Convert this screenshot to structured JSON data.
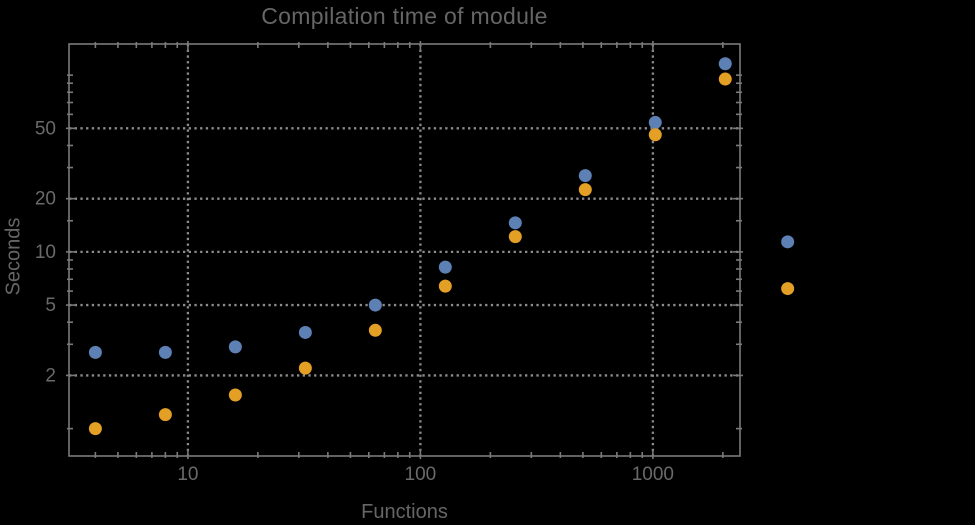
{
  "colors": {
    "background": "#000000",
    "frame": "#7a7a7a",
    "grid": "#8c8c8c",
    "tick": "#7a7a7a",
    "text": "#666666",
    "tick_label": "#6a6a6a",
    "series1": "#5e81b5",
    "series2": "#e3a025"
  },
  "chart_data": {
    "type": "scatter",
    "title": "Compilation time of module",
    "xlabel": "Functions",
    "ylabel": "Seconds",
    "x_scale": "log",
    "y_scale": "log",
    "xlim": [
      3.08,
      2370
    ],
    "ylim": [
      0.7,
      150
    ],
    "x_ticks": [
      10,
      100,
      1000
    ],
    "y_ticks": [
      2,
      5,
      10,
      20,
      50
    ],
    "x_minor_ticks": [
      4,
      5,
      6,
      7,
      8,
      9,
      20,
      30,
      40,
      50,
      60,
      70,
      80,
      90,
      200,
      300,
      400,
      500,
      600,
      700,
      800,
      900,
      2000
    ],
    "y_minor_ticks": [
      1,
      3,
      4,
      6,
      7,
      8,
      9,
      15,
      30,
      40,
      60,
      70,
      80,
      90,
      100
    ],
    "grid": true,
    "grid_style": "dotted",
    "legend": "none",
    "marker": "filled-circle",
    "marker_radius": 6.5,
    "x": [
      4,
      8,
      16,
      32,
      64,
      128,
      256,
      512,
      1024,
      2048,
      3800
    ],
    "series": [
      {
        "name": "series-1-blue",
        "color": "#5e81b5",
        "values": [
          2.7,
          2.7,
          2.9,
          3.5,
          5.0,
          8.2,
          14.6,
          27,
          54,
          116,
          11.4
        ]
      },
      {
        "name": "series-2-orange",
        "color": "#e3a025",
        "values": [
          1.0,
          1.2,
          1.55,
          2.2,
          3.6,
          6.4,
          12.2,
          22.5,
          46,
          95,
          6.2
        ]
      }
    ]
  }
}
